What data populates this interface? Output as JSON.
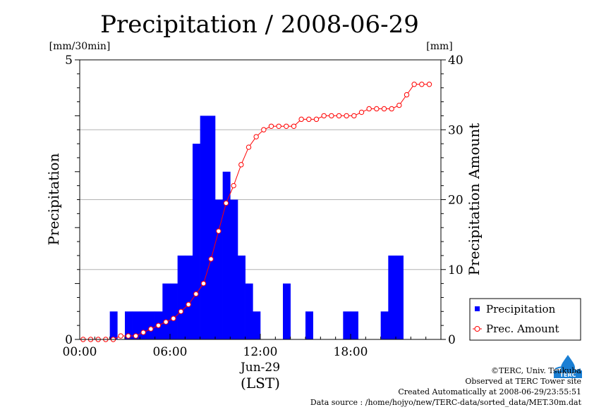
{
  "chart_data": {
    "type": "bar",
    "title": "Precipitation / 2008-06-29",
    "ylabel": "Precipitation",
    "ylabel_right": "Precipitation Amount",
    "yunit_left": "[mm/30min]",
    "yunit_right": "[mm]",
    "ylim": [
      0,
      5
    ],
    "ylim_right": [
      0,
      40
    ],
    "yticks_left": [
      "0",
      "5"
    ],
    "yticks_right": [
      "0",
      "10",
      "20",
      "30",
      "40"
    ],
    "xticks": [
      "00:00",
      "06:00",
      "12:00",
      "18:00"
    ],
    "xlabel_date": "Jun-29",
    "xlabel_unit": "(LST)",
    "grid": true,
    "legend_position": "right",
    "x_half_hours": [
      0.5,
      1,
      1.5,
      2,
      2.5,
      3,
      3.5,
      4,
      4.5,
      5,
      5.5,
      6,
      6.5,
      7,
      7.5,
      8,
      8.5,
      9,
      9.5,
      10,
      10.5,
      11,
      11.5,
      12,
      12.5,
      13,
      13.5,
      14,
      14.5,
      15,
      15.5,
      16,
      16.5,
      17,
      17.5,
      18,
      18.5,
      19,
      19.5,
      20,
      20.5,
      21,
      21.5,
      22,
      22.5,
      23,
      23.5
    ],
    "series": [
      {
        "name": "Precipitation",
        "values": [
          0,
          0,
          0,
          0,
          0.5,
          0,
          0.5,
          0.5,
          0.5,
          0.5,
          0.5,
          1,
          1,
          1.5,
          1.5,
          3.5,
          4,
          4,
          2.5,
          3,
          2.5,
          1.5,
          1,
          0.5,
          0,
          0,
          0,
          1,
          0,
          0,
          0.5,
          0,
          0,
          0,
          0,
          0.5,
          0.5,
          0,
          0,
          0,
          0.5,
          1.5,
          1.5,
          0,
          0,
          0,
          0
        ]
      },
      {
        "name": "Prec. Amount",
        "values": [
          0,
          0,
          0,
          0,
          0,
          0.5,
          0.5,
          0.5,
          1,
          1.5,
          2,
          2.5,
          3,
          4,
          5,
          6.5,
          8,
          11.5,
          15.5,
          19.5,
          22,
          25,
          27.5,
          29,
          30,
          30.5,
          30.5,
          30.5,
          30.5,
          31.5,
          31.5,
          31.5,
          32,
          32,
          32,
          32,
          32,
          32.5,
          33,
          33,
          33,
          33,
          33.5,
          35,
          36.5,
          36.5,
          36.5
        ]
      }
    ],
    "colors": {
      "bars": "#0000ff",
      "line": "#ff0000",
      "grid": "#b3b3b3"
    }
  },
  "credits": {
    "copyright": "©TERC, Univ. Tsukuba",
    "observed": "Observed at TERC Tower site",
    "created": "Created Automatically at 2008-06-29/23:55:51",
    "source": "Data source : /home/hojyo/new/TERC-data/sorted_data/MET.30m.dat"
  },
  "logo": {
    "icon": "terc-logo-icon",
    "text": "TERC"
  }
}
